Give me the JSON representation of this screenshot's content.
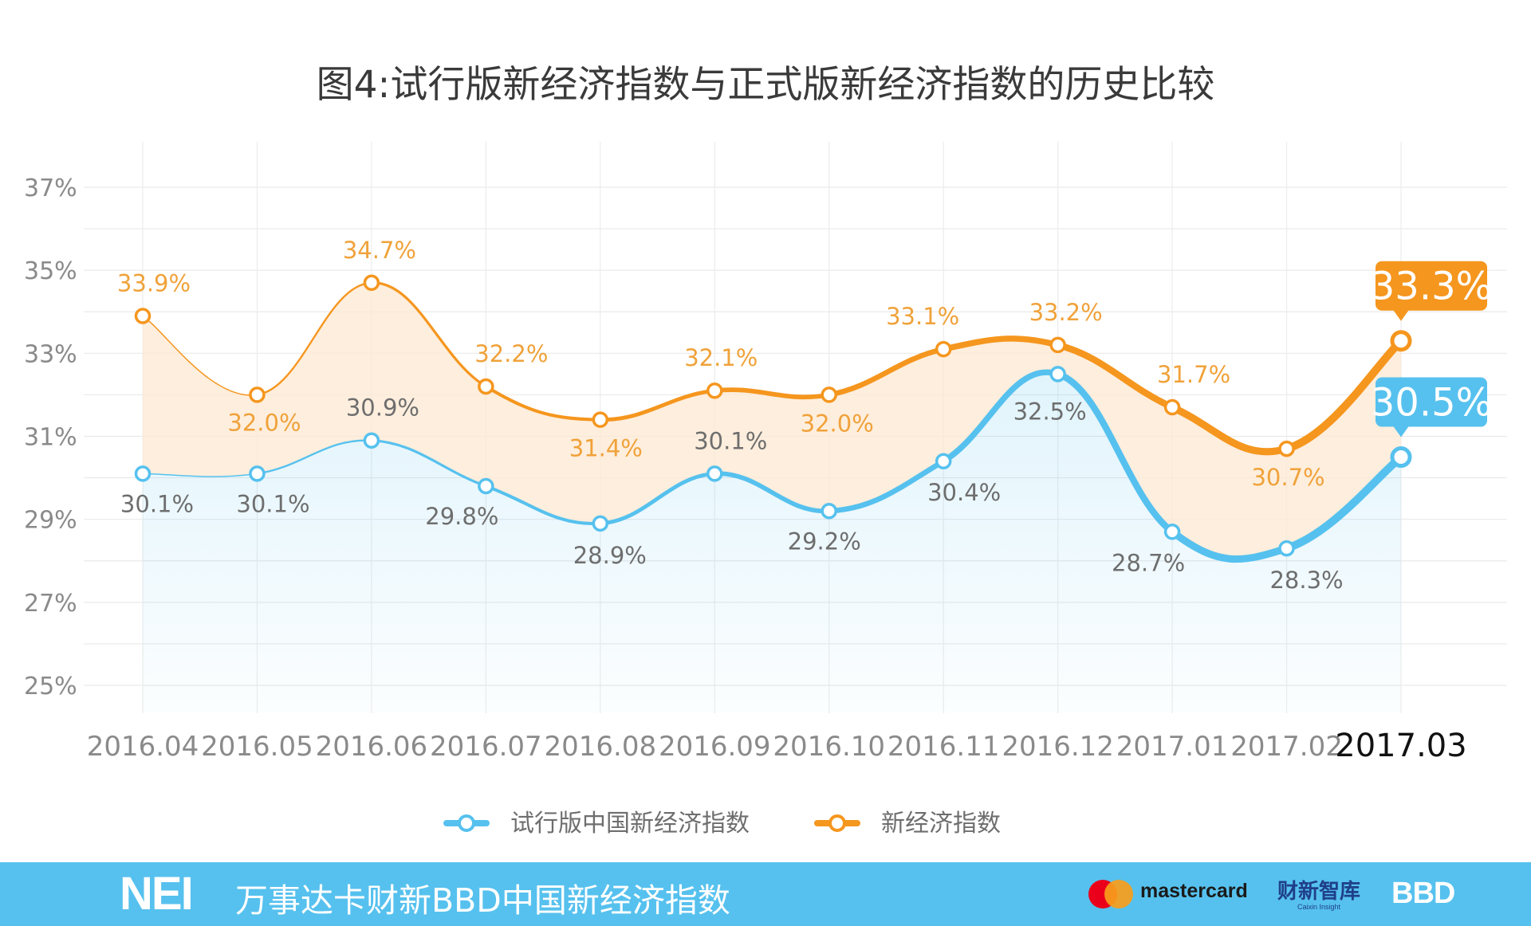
{
  "colors": {
    "blue": "#56c1ee",
    "orange": "#f5961e",
    "orange_label": "#f0a23a",
    "footer_bg": "#56c1ee"
  },
  "chart_data": {
    "type": "line",
    "title": "图4:试行版新经济指数与正式版新经济指数的历史比较",
    "categories": [
      "2016.04",
      "2016.05",
      "2016.06",
      "2016.07",
      "2016.08",
      "2016.09",
      "2016.10",
      "2016.11",
      "2016.12",
      "2017.01",
      "2017.02",
      "2017.03"
    ],
    "y_ticks": [
      "25%",
      "27%",
      "29%",
      "31%",
      "33%",
      "35%",
      "37%"
    ],
    "ylim": [
      25,
      37
    ],
    "unit": "%",
    "grid": true,
    "legend_position": "bottom-center",
    "series": [
      {
        "name": "试行版中国新经济指数",
        "color": "#56c1ee",
        "values": [
          30.1,
          30.1,
          30.9,
          29.8,
          28.9,
          30.1,
          29.2,
          30.4,
          32.5,
          28.7,
          28.3,
          30.5
        ],
        "labels": [
          "30.1%",
          "30.1%",
          "30.9%",
          "29.8%",
          "28.9%",
          "30.1%",
          "29.2%",
          "30.4%",
          "32.5%",
          "28.7%",
          "28.3%",
          "30.5%"
        ]
      },
      {
        "name": "新经济指数",
        "color": "#f5961e",
        "values": [
          33.9,
          32.0,
          34.7,
          32.2,
          31.4,
          32.1,
          32.0,
          33.1,
          33.2,
          31.7,
          30.7,
          33.3
        ],
        "labels": [
          "33.9%",
          "32.0%",
          "34.7%",
          "32.2%",
          "31.4%",
          "32.1%",
          "32.0%",
          "33.1%",
          "33.2%",
          "31.7%",
          "30.7%",
          "33.3%"
        ]
      }
    ]
  },
  "footer": {
    "logo": "NEI",
    "brand": "万事达卡财新BBD中国新经济指数",
    "partner_1": "mastercard",
    "partner_2_cn": "财新智库",
    "partner_2_en": "Caixin Insight",
    "partner_3": "BBD"
  }
}
